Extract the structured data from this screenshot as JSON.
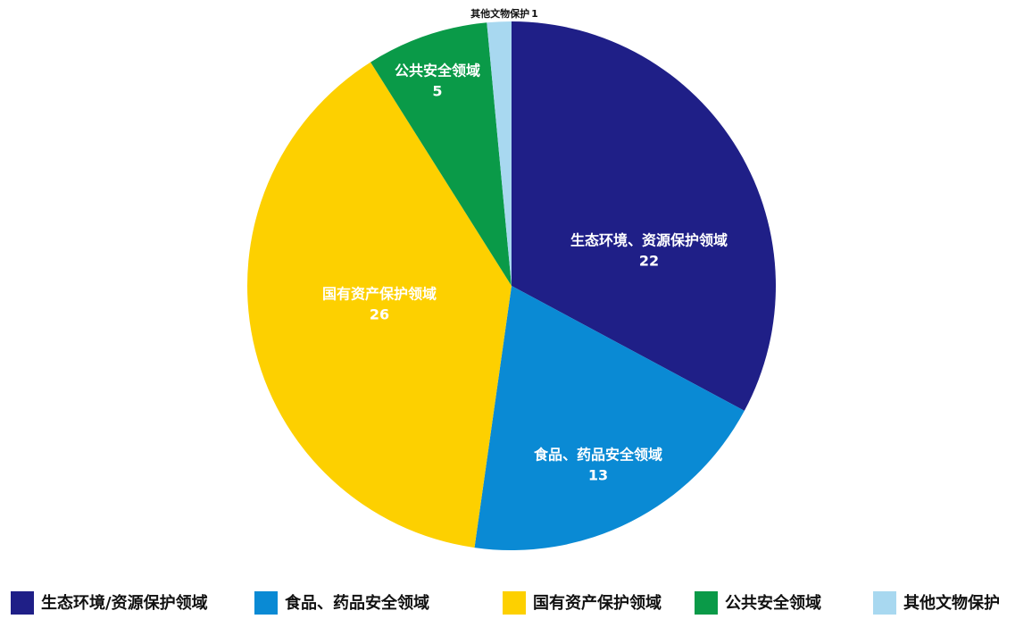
{
  "chart_data": {
    "type": "pie",
    "categories": [
      "生态环境/资源保护领域",
      "食品、药品安全领域",
      "国有资产保护领域",
      "公共安全领域",
      "其他文物保护"
    ],
    "labels": [
      "生态环境、资源保护领域",
      "食品、药品安全领域",
      "国有资产保护领域",
      "公共安全领域",
      "其他文物保护"
    ],
    "values": [
      22,
      13,
      26,
      5,
      1
    ],
    "colors": [
      "#1f1f87",
      "#0a8ad4",
      "#fdd000",
      "#0a9a48",
      "#a8d8f0"
    ]
  }
}
